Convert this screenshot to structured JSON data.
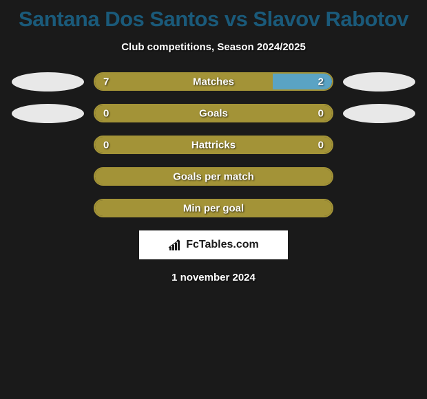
{
  "title": "Santana Dos Santos vs Slavov Rabotov",
  "subtitle": "Club competitions, Season 2024/2025",
  "date": "1 november 2024",
  "logo_text": "FcTables.com",
  "colors": {
    "background": "#1a1a1a",
    "title": "#1a5a7a",
    "text": "#ffffff",
    "ellipse": "#e8e8e8",
    "olive": "#a39337",
    "olive_light": "#b5a848",
    "blue": "#5aa3c4"
  },
  "rows": [
    {
      "label": "Matches",
      "left_val": "7",
      "right_val": "2",
      "left_pct": 75,
      "left_color": "#a39337",
      "right_color": "#5aa3c4",
      "border_color": "#a39337",
      "show_ellipses": true,
      "show_vals": true
    },
    {
      "label": "Goals",
      "left_val": "0",
      "right_val": "0",
      "left_pct": 50,
      "left_color": "#a39337",
      "right_color": "#a39337",
      "border_color": "#a39337",
      "show_ellipses": true,
      "show_vals": true
    },
    {
      "label": "Hattricks",
      "left_val": "0",
      "right_val": "0",
      "left_pct": 50,
      "left_color": "#a39337",
      "right_color": "#a39337",
      "border_color": "#a39337",
      "show_ellipses": false,
      "show_vals": true
    },
    {
      "label": "Goals per match",
      "left_val": "",
      "right_val": "",
      "left_pct": 100,
      "left_color": "#a39337",
      "right_color": "#a39337",
      "border_color": "#a39337",
      "show_ellipses": false,
      "show_vals": false
    },
    {
      "label": "Min per goal",
      "left_val": "",
      "right_val": "",
      "left_pct": 100,
      "left_color": "#a39337",
      "right_color": "#a39337",
      "border_color": "#a39337",
      "show_ellipses": false,
      "show_vals": false
    }
  ]
}
